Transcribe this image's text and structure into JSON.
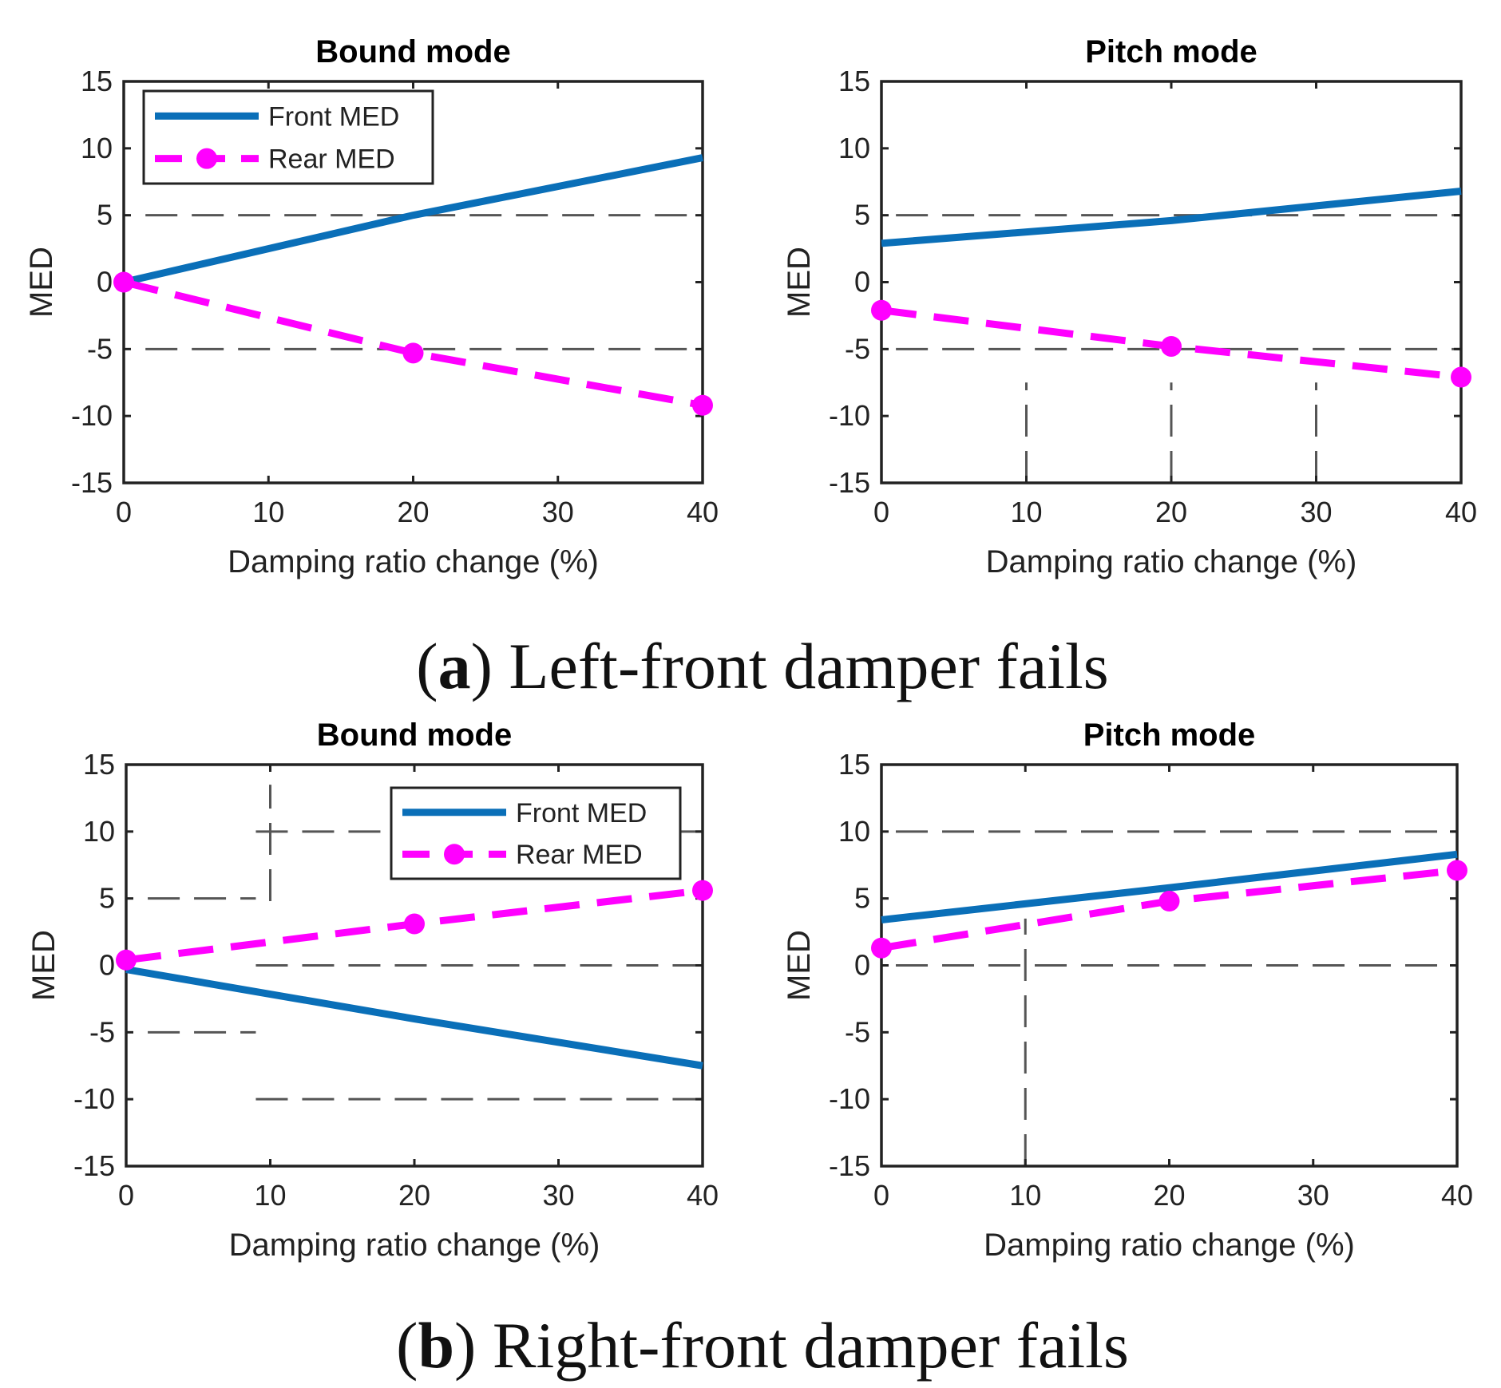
{
  "figure": {
    "caption_a": {
      "open": "(",
      "letter": "a",
      "rest": ") Left-front damper fails"
    },
    "caption_b": {
      "open": "(",
      "letter": "b",
      "rest": ") Right-front damper fails"
    }
  },
  "colors": {
    "front": "#0a6fb8",
    "rear": "#ff00ff",
    "axis": "#222222",
    "guide": "#555555"
  },
  "chart_data": [
    {
      "type": "line",
      "id": "a-bound",
      "title": "Bound mode",
      "xlabel": "Damping ratio change (%)",
      "ylabel": "MED",
      "xlim": [
        0,
        40
      ],
      "ylim": [
        -15,
        15
      ],
      "xticks": [
        0,
        10,
        20,
        30,
        40
      ],
      "yticks": [
        -15,
        -10,
        -5,
        0,
        5,
        10,
        15
      ],
      "legend": {
        "position": "top-left",
        "entries": [
          "Front MED",
          "Rear MED"
        ]
      },
      "series": [
        {
          "name": "Front MED",
          "style": "solid",
          "x": [
            0,
            20,
            40
          ],
          "values": [
            0,
            5.0,
            9.3
          ]
        },
        {
          "name": "Rear MED",
          "style": "dashed-marker",
          "x": [
            0,
            20,
            40
          ],
          "values": [
            0,
            -5.3,
            -9.2
          ]
        }
      ],
      "guides": {
        "h": [
          {
            "y": 5,
            "x0": 1.5,
            "x1": 40
          },
          {
            "y": -5,
            "x0": 1.5,
            "x1": 40
          }
        ],
        "v": []
      }
    },
    {
      "type": "line",
      "id": "a-pitch",
      "title": "Pitch mode",
      "xlabel": "Damping ratio change (%)",
      "ylabel": "MED",
      "xlim": [
        0,
        40
      ],
      "ylim": [
        -15,
        15
      ],
      "xticks": [
        0,
        10,
        20,
        30,
        40
      ],
      "yticks": [
        -15,
        -10,
        -5,
        0,
        5,
        10,
        15
      ],
      "legend": null,
      "series": [
        {
          "name": "Front MED",
          "style": "solid",
          "x": [
            0,
            20,
            40
          ],
          "values": [
            2.9,
            4.6,
            6.8
          ]
        },
        {
          "name": "Rear MED",
          "style": "dashed-marker",
          "x": [
            0,
            20,
            40
          ],
          "values": [
            -2.1,
            -4.8,
            -7.1
          ]
        }
      ],
      "guides": {
        "h": [
          {
            "y": 5,
            "x0": 1,
            "x1": 40
          },
          {
            "y": -5,
            "x0": 1,
            "x1": 40
          }
        ],
        "v": [
          {
            "x": 10,
            "y0": -15,
            "y1": -7.5
          },
          {
            "x": 20,
            "y0": -15,
            "y1": -7.5
          },
          {
            "x": 30,
            "y0": -15,
            "y1": -7.5
          }
        ]
      }
    },
    {
      "type": "line",
      "id": "b-bound",
      "title": "Bound mode",
      "xlabel": "Damping ratio change (%)",
      "ylabel": "MED",
      "xlim": [
        0,
        40
      ],
      "ylim": [
        -15,
        15
      ],
      "xticks": [
        0,
        10,
        20,
        30,
        40
      ],
      "yticks": [
        -15,
        -10,
        -5,
        0,
        5,
        10,
        15
      ],
      "legend": {
        "position": "top-right",
        "entries": [
          "Front MED",
          "Rear MED"
        ]
      },
      "series": [
        {
          "name": "Front MED",
          "style": "solid",
          "x": [
            0,
            20,
            40
          ],
          "values": [
            -0.3,
            -4.0,
            -7.5
          ]
        },
        {
          "name": "Rear MED",
          "style": "dashed-marker",
          "x": [
            0,
            20,
            40
          ],
          "values": [
            0.4,
            3.1,
            5.6
          ]
        }
      ],
      "guides": {
        "h": [
          {
            "y": 5,
            "x0": 1.5,
            "x1": 9
          },
          {
            "y": -5,
            "x0": 1.5,
            "x1": 9
          },
          {
            "y": 10,
            "x0": 9,
            "x1": 40
          },
          {
            "y": 0,
            "x0": 9,
            "x1": 40
          },
          {
            "y": -10,
            "x0": 9,
            "x1": 40
          }
        ],
        "v": [
          {
            "x": 10,
            "y0": 4.8,
            "y1": 13.5
          }
        ]
      }
    },
    {
      "type": "line",
      "id": "b-pitch",
      "title": "Pitch mode",
      "xlabel": "Damping ratio change (%)",
      "ylabel": "MED",
      "xlim": [
        0,
        40
      ],
      "ylim": [
        -15,
        15
      ],
      "xticks": [
        0,
        10,
        20,
        30,
        40
      ],
      "yticks": [
        -15,
        -10,
        -5,
        0,
        5,
        10,
        15
      ],
      "legend": null,
      "series": [
        {
          "name": "Front MED",
          "style": "solid",
          "x": [
            0,
            20,
            40
          ],
          "values": [
            3.4,
            5.8,
            8.3
          ]
        },
        {
          "name": "Rear MED",
          "style": "dashed-marker",
          "x": [
            0,
            20,
            40
          ],
          "values": [
            1.3,
            4.8,
            7.1
          ]
        }
      ],
      "guides": {
        "h": [
          {
            "y": 10,
            "x0": 1,
            "x1": 40
          },
          {
            "y": 0,
            "x0": 1,
            "x1": 40
          }
        ],
        "v": [
          {
            "x": 10,
            "y0": -15,
            "y1": 3.5
          }
        ]
      }
    }
  ]
}
